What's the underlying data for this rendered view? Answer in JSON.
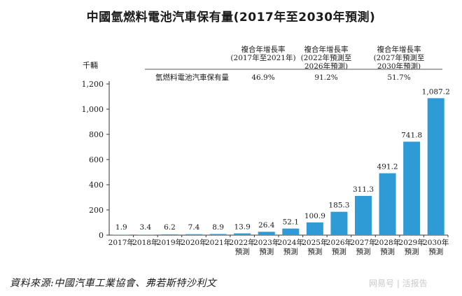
{
  "chart_data": {
    "type": "bar",
    "title": "中國氫燃料電池汽車保有量(2017年至2030年預測)",
    "ylabel": "千輛",
    "xlabel": "",
    "ylim": [
      0,
      1200
    ],
    "yticks": [
      0,
      200,
      400,
      600,
      800,
      1000,
      1200
    ],
    "ytick_labels": [
      "0",
      "200",
      "400",
      "600",
      "800",
      "1,000",
      "1,200"
    ],
    "categories": [
      [
        "2017年"
      ],
      [
        "2018年"
      ],
      [
        "2019年"
      ],
      [
        "2020年"
      ],
      [
        "2021年"
      ],
      [
        "2022年",
        "預測"
      ],
      [
        "2023年",
        "預測"
      ],
      [
        "2024年",
        "預測"
      ],
      [
        "2025年",
        "預測"
      ],
      [
        "2026年",
        "預測"
      ],
      [
        "2027年",
        "預測"
      ],
      [
        "2028年",
        "預測"
      ],
      [
        "2029年",
        "預測"
      ],
      [
        "2030年",
        "預測"
      ]
    ],
    "values": [
      1.9,
      3.4,
      6.2,
      7.4,
      8.9,
      13.9,
      26.4,
      52.1,
      100.9,
      185.3,
      311.3,
      491.2,
      741.8,
      1087.2
    ],
    "value_labels": [
      "1.9",
      "3.4",
      "6.2",
      "7.4",
      "8.9",
      "13.9",
      "26.4",
      "52.1",
      "100.9",
      "185.3",
      "311.3",
      "491.2",
      "741.8",
      "1,087.2"
    ],
    "bar_color": "#2e9bd6",
    "cagr_table": {
      "headers": [
        [
          "複合年增長率",
          "(2017年至2021年)"
        ],
        [
          "複合年增長率",
          "(2022年預測至",
          "2026年預測)"
        ],
        [
          "複合年增長率",
          "(2027年預測至",
          "2030年預測)"
        ]
      ],
      "row_label": "氫燃料電池汽車保有量",
      "values": [
        "46.9%",
        "91.2%",
        "51.7%"
      ]
    }
  },
  "source": "資料來源:中國汽車工業協會、弗若斯特沙利文",
  "watermark": "网易号 | 活报告"
}
